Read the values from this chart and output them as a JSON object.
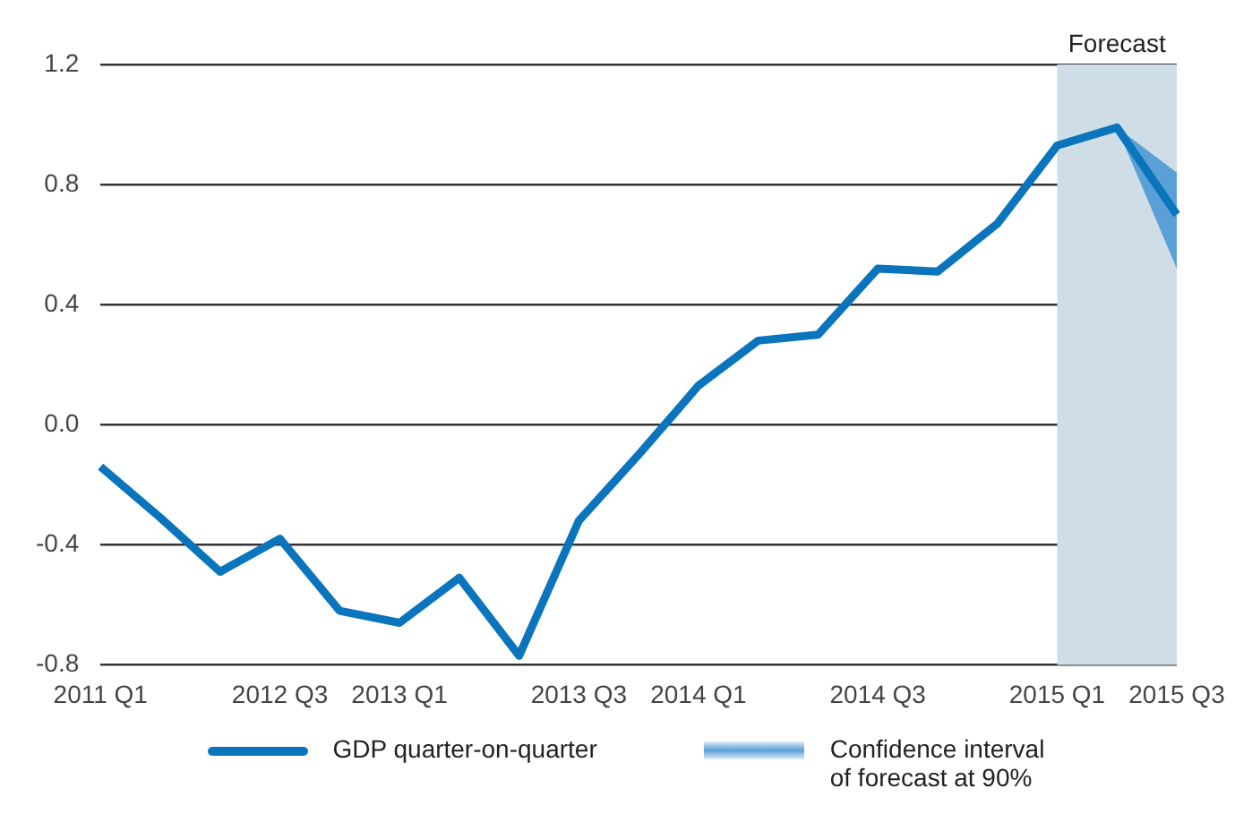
{
  "chart_data": {
    "type": "line",
    "categories": [
      "2011 Q1",
      null,
      null,
      "2012 Q3",
      null,
      "2013 Q1",
      null,
      null,
      "2013 Q3",
      null,
      "2014 Q1",
      null,
      null,
      "2014 Q3",
      null,
      null,
      "2015 Q1",
      null,
      "2015 Q3"
    ],
    "series": [
      {
        "name": "GDP quarter-on-quarter",
        "color": "#0a75bd",
        "values": [
          -0.14,
          -0.31,
          -0.49,
          -0.38,
          -0.62,
          -0.66,
          -0.51,
          -0.77,
          -0.32,
          -0.1,
          0.13,
          0.28,
          0.3,
          0.52,
          0.51,
          0.67,
          0.93,
          0.99,
          0.7
        ],
        "lower": [
          null,
          null,
          null,
          null,
          null,
          null,
          null,
          null,
          null,
          null,
          null,
          null,
          null,
          null,
          null,
          null,
          null,
          0.99,
          0.52
        ],
        "upper": [
          null,
          null,
          null,
          null,
          null,
          null,
          null,
          null,
          null,
          null,
          null,
          null,
          null,
          null,
          null,
          null,
          null,
          0.99,
          0.84
        ]
      }
    ],
    "ylim": [
      -0.8,
      1.2
    ],
    "yticks": [
      -0.8,
      -0.4,
      {
        "value": 0,
        "label": "0.0"
      },
      0.4,
      0.8,
      1.2
    ],
    "bands": [
      {
        "axis": "x",
        "from": "2015 Q1",
        "to": "2015 Q3",
        "label": "Forecast",
        "color": "#cfdee6"
      }
    ],
    "annotations": [
      "Confidence interval\nof forecast at 90%"
    ],
    "grid": "y",
    "legend": "bottom",
    "marker": "none",
    "line_style": "solid"
  }
}
